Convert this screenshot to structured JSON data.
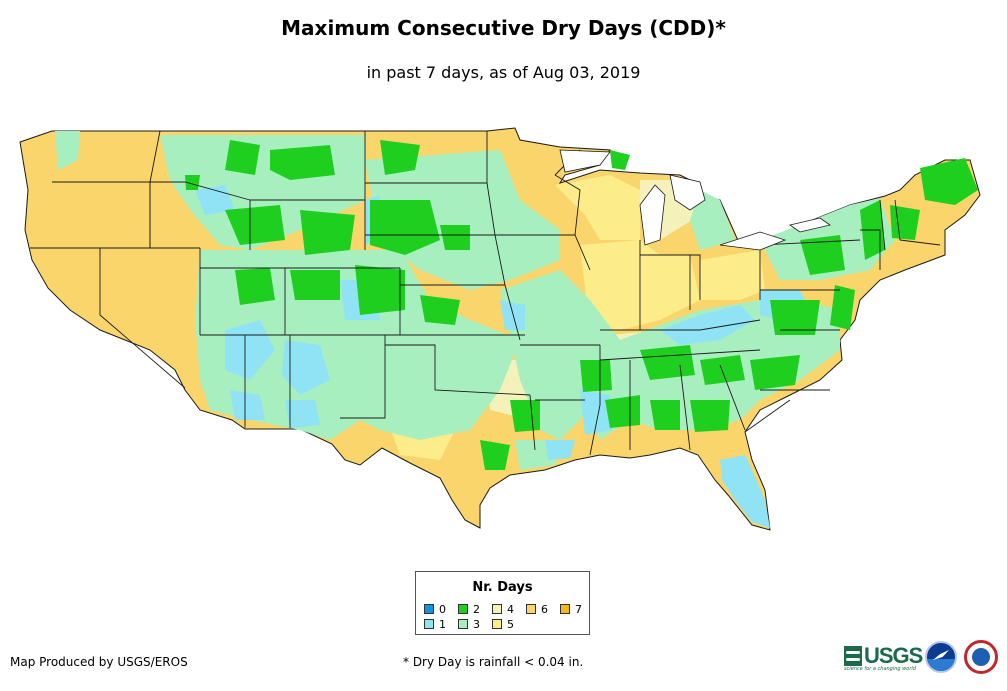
{
  "header": {
    "title": "Maximum Consecutive Dry Days (CDD)*",
    "subtitle": "in past 7 days, as of Aug 03, 2019"
  },
  "legend": {
    "title": "Nr. Days",
    "items": [
      {
        "label": "0",
        "color": "#0f95dd"
      },
      {
        "label": "1",
        "color": "#8fe3f5"
      },
      {
        "label": "2",
        "color": "#1fcf1f"
      },
      {
        "label": "3",
        "color": "#a8efc0"
      },
      {
        "label": "4",
        "color": "#f4f2ba"
      },
      {
        "label": "5",
        "color": "#fdec8a"
      },
      {
        "label": "6",
        "color": "#f9d56b"
      },
      {
        "label": "7",
        "color": "#f7b817"
      }
    ]
  },
  "footer": {
    "credit": "Map Produced by USGS/EROS",
    "note": "* Dry Day is rainfall < 0.04 in.",
    "usgs_logo": "USGS",
    "usgs_tagline": "science for a changing world"
  },
  "colors": {
    "state_border": "#1a1a1a",
    "dry_base": "#f9d56b"
  }
}
